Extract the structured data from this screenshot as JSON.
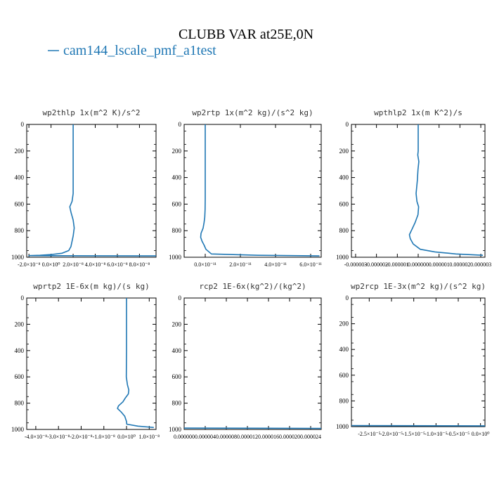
{
  "title": "CLUBB VAR at25E,0N",
  "legend": {
    "label": "cam144_lscale_pmf_a1test",
    "color": "#1f77b4"
  },
  "chart_data": [
    {
      "type": "line",
      "title": "wp2thlp  1x(m^2 K)/s^2",
      "ylim": [
        1000,
        0
      ],
      "xlim": [
        -2.2e-08,
        9.5e-08
      ],
      "yticks": [
        0,
        200,
        400,
        600,
        800,
        1000
      ],
      "xticks": [
        {
          "v": -2e-08,
          "label": "-2.0×10⁻⁸"
        },
        {
          "v": 0,
          "label": "0.0×10⁰"
        },
        {
          "v": 2e-08,
          "label": "2.0×10⁻⁸"
        },
        {
          "v": 4e-08,
          "label": "4.0×10⁻⁸"
        },
        {
          "v": 6e-08,
          "label": "6.0×10⁻⁸"
        },
        {
          "v": 8e-08,
          "label": "8.0×10⁻⁸"
        }
      ],
      "series": [
        {
          "x": [
            2e-08,
            2e-08,
            2e-08,
            2e-08,
            1.9e-08,
            1.7e-08,
            1.8e-08,
            2e-08,
            2.1e-08,
            2e-08,
            1.9e-08,
            1.8e-08,
            1.6e-08,
            1e-08,
            0,
            -1e-08,
            -2e-08,
            9.5e-08
          ],
          "y": [
            0,
            200,
            400,
            520,
            580,
            620,
            660,
            720,
            780,
            840,
            880,
            920,
            950,
            970,
            980,
            985,
            988,
            990
          ]
        }
      ]
    },
    {
      "type": "line",
      "title": "wp2rtp  1x(m^2 kg)/(s^2 kg)",
      "ylim": [
        1000,
        0
      ],
      "xlim": [
        -1.2e-11,
        6.6e-11
      ],
      "yticks": [
        0,
        200,
        400,
        600,
        800,
        1000
      ],
      "xticks": [
        {
          "v": 0,
          "label": "0.0×10⁻¹¹"
        },
        {
          "v": 2e-11,
          "label": "2.0×10⁻¹¹"
        },
        {
          "v": 4e-11,
          "label": "4.0×10⁻¹¹"
        },
        {
          "v": 6e-11,
          "label": "6.0×10⁻¹¹"
        }
      ],
      "series": [
        {
          "x": [
            0,
            0,
            0,
            0,
            -1e-13,
            -3e-13,
            -7e-13,
            -1.2e-12,
            -2.4e-12,
            -2.6e-12,
            -1.8e-12,
            -6e-13,
            4e-13,
            3.5e-12,
            3e-11,
            6.5e-11
          ],
          "y": [
            0,
            200,
            400,
            560,
            640,
            700,
            740,
            780,
            820,
            850,
            880,
            910,
            940,
            975,
            985,
            990
          ]
        }
      ]
    },
    {
      "type": "line",
      "title": "wpthlp2  1x(m K^2)/s",
      "ylim": [
        1000,
        0
      ],
      "xlim": [
        -3.2e-06,
        3.2e-06
      ],
      "yticks": [
        0,
        200,
        400,
        600,
        800,
        1000
      ],
      "xticks": [
        {
          "v": -3e-06,
          "label": "-0.000003"
        },
        {
          "v": -2e-06,
          "label": "-0.000002"
        },
        {
          "v": -1e-06,
          "label": "-0.000001"
        },
        {
          "v": 0,
          "label": "0.000000"
        },
        {
          "v": 1e-06,
          "label": "0.000001"
        },
        {
          "v": 2e-06,
          "label": "0.000002"
        },
        {
          "v": 3e-06,
          "label": "0.000003"
        }
      ],
      "series": [
        {
          "x": [
            0,
            0,
            0,
            -2e-08,
            3e-08,
            -1e-08,
            -4e-08,
            -1e-07,
            -6e-08,
            2e-08,
            -1e-08,
            -1.5e-07,
            -3e-07,
            -4.2e-07,
            -3.8e-07,
            -2.4e-07,
            1e-07,
            8e-07,
            1.8e-06,
            3.1e-06
          ],
          "y": [
            0,
            100,
            200,
            230,
            280,
            340,
            420,
            520,
            580,
            620,
            680,
            740,
            790,
            830,
            860,
            900,
            940,
            960,
            975,
            985
          ]
        }
      ]
    },
    {
      "type": "line",
      "title": "wprtp2  1E-6x(m kg)/(s kg)",
      "ylim": [
        1000,
        0
      ],
      "xlim": [
        -4.4e-08,
        1.3e-08
      ],
      "yticks": [
        0,
        200,
        400,
        600,
        800,
        1000
      ],
      "xticks": [
        {
          "v": -4e-08,
          "label": "-4.0×10⁻⁸"
        },
        {
          "v": -3e-08,
          "label": "-3.0×10⁻⁸"
        },
        {
          "v": -2e-08,
          "label": "-2.0×10⁻⁸"
        },
        {
          "v": -1e-08,
          "label": "-1.0×10⁻⁸"
        },
        {
          "v": 0,
          "label": "0.0×10⁰"
        },
        {
          "v": 1e-08,
          "label": "1.0×10⁻⁸"
        }
      ],
      "series": [
        {
          "x": [
            0,
            0,
            0,
            -1e-10,
            4e-10,
            1e-09,
            8e-10,
            -5e-10,
            -1.6e-09,
            -3.5e-09,
            -4e-09,
            -2.2e-09,
            -8e-10,
            0,
            1e-10,
            5e-09,
            1.2e-08
          ],
          "y": [
            0,
            200,
            400,
            600,
            660,
            700,
            730,
            760,
            790,
            820,
            840,
            870,
            900,
            940,
            960,
            975,
            985
          ]
        }
      ]
    },
    {
      "type": "line",
      "title": "rcp2  1E-6x(kg^2)/(kg^2)",
      "ylim": [
        1000,
        0
      ],
      "xlim": [
        0,
        2.6e-05
      ],
      "yticks": [
        0,
        200,
        400,
        600,
        800,
        1000
      ],
      "xticks": [
        {
          "v": 0,
          "label": "0.000000"
        },
        {
          "v": 4e-06,
          "label": "0.000004"
        },
        {
          "v": 8e-06,
          "label": "0.000008"
        },
        {
          "v": 1.2e-05,
          "label": "0.000012"
        },
        {
          "v": 1.6e-05,
          "label": "0.000016"
        },
        {
          "v": 2e-05,
          "label": "0.000020"
        },
        {
          "v": 2.4e-05,
          "label": "0.000024"
        }
      ],
      "series": [
        {
          "x": [
            0,
            2.6e-05
          ],
          "y": [
            990,
            992
          ]
        }
      ]
    },
    {
      "type": "line",
      "title": "wp2rcp  1E-3x(m^2 kg)/(s^2 kg)",
      "ylim": [
        1000,
        0
      ],
      "xlim": [
        -2.9e-05,
        1e-06
      ],
      "yticks": [
        0,
        200,
        400,
        600,
        800,
        1000
      ],
      "xticks": [
        {
          "v": -2.5e-05,
          "label": "-2.5×10⁻⁵"
        },
        {
          "v": -2e-05,
          "label": "-2.0×10⁻⁵"
        },
        {
          "v": -1.5e-05,
          "label": "-1.5×10⁻⁵"
        },
        {
          "v": -1e-05,
          "label": "-1.0×10⁻⁵"
        },
        {
          "v": -5e-06,
          "label": "-0.5×10⁻⁵"
        },
        {
          "v": 0,
          "label": "0.0×10⁰"
        }
      ],
      "series": [
        {
          "x": [
            -2.9e-05,
            1e-06
          ],
          "y": [
            992,
            994
          ]
        }
      ]
    }
  ]
}
